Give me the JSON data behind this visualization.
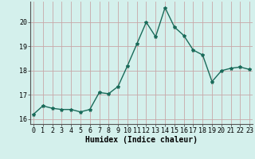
{
  "x": [
    0,
    1,
    2,
    3,
    4,
    5,
    6,
    7,
    8,
    9,
    10,
    11,
    12,
    13,
    14,
    15,
    16,
    17,
    18,
    19,
    20,
    21,
    22,
    23
  ],
  "y": [
    16.2,
    16.55,
    16.45,
    16.4,
    16.4,
    16.3,
    16.4,
    17.1,
    17.05,
    17.35,
    18.2,
    19.1,
    20.0,
    19.4,
    20.6,
    19.8,
    19.45,
    18.85,
    18.65,
    17.55,
    18.0,
    18.1,
    18.15,
    18.05
  ],
  "line_color": "#1a6b5a",
  "marker": "*",
  "marker_size": 3,
  "bg_color": "#d4f0ec",
  "grid_color_h": "#c8a8a8",
  "grid_color_v": "#c8a8a8",
  "xlabel": "Humidex (Indice chaleur)",
  "yticks": [
    16,
    17,
    18,
    19,
    20
  ],
  "xticks": [
    0,
    1,
    2,
    3,
    4,
    5,
    6,
    7,
    8,
    9,
    10,
    11,
    12,
    13,
    14,
    15,
    16,
    17,
    18,
    19,
    20,
    21,
    22,
    23
  ],
  "xlim": [
    -0.3,
    23.3
  ],
  "ylim": [
    15.8,
    20.85
  ],
  "xlabel_fontsize": 7,
  "tick_fontsize": 6,
  "linewidth": 1.0
}
